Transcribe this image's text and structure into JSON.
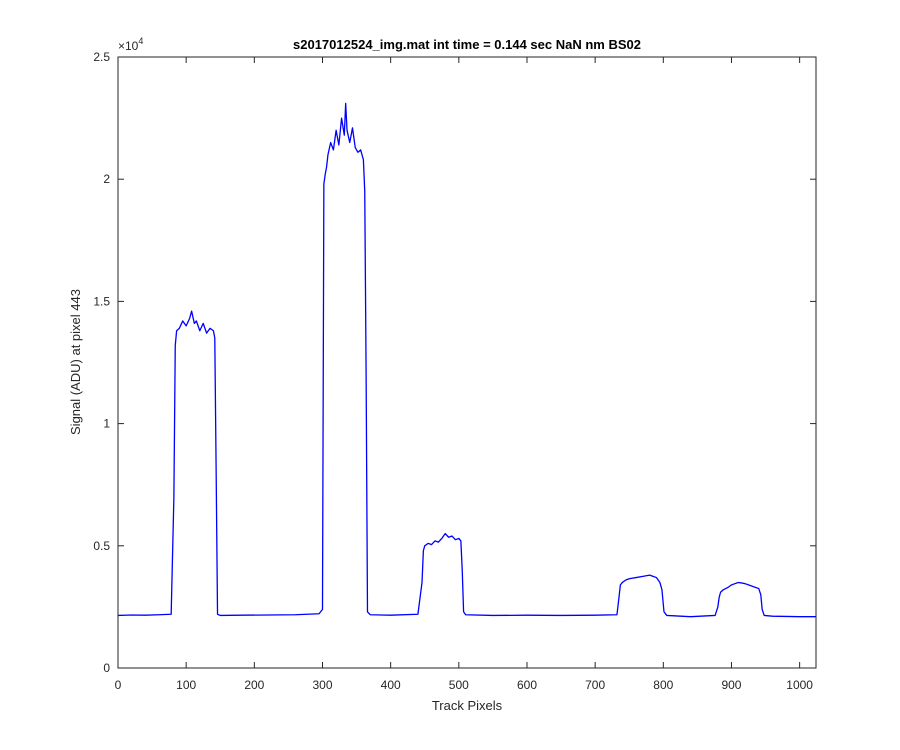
{
  "chart_data": {
    "type": "line",
    "title": "s2017012524_img.mat int time = 0.144 sec  NaN nm BS02",
    "xlabel": "Track Pixels",
    "ylabel": "Signal (ADU) at pixel 443",
    "xlim": [
      0,
      1024
    ],
    "ylim": [
      0,
      25000
    ],
    "xticks": [
      0,
      100,
      200,
      300,
      400,
      500,
      600,
      700,
      800,
      900,
      1000
    ],
    "yticks": [
      0,
      5000,
      10000,
      15000,
      20000,
      25000
    ],
    "ytick_labels": [
      "0",
      "0.5",
      "1",
      "1.5",
      "2",
      "2.5"
    ],
    "xtick_labels": [
      "0",
      "100",
      "200",
      "300",
      "400",
      "500",
      "600",
      "700",
      "800",
      "900",
      "1000"
    ],
    "y_exponent_label": "×10",
    "y_exponent_power": "4",
    "grid": false,
    "line_color": "#0000ff",
    "series": [
      {
        "x": [
          0,
          20,
          40,
          60,
          78,
          82,
          84,
          86,
          90,
          95,
          100,
          105,
          108,
          112,
          115,
          120,
          125,
          130,
          135,
          140,
          142,
          144,
          146,
          150,
          180,
          220,
          260,
          295,
          300,
          302,
          304,
          306,
          308,
          312,
          316,
          320,
          324,
          328,
          332,
          334,
          336,
          340,
          344,
          348,
          352,
          356,
          360,
          362,
          364,
          366,
          370,
          400,
          440,
          446,
          448,
          450,
          455,
          460,
          465,
          470,
          475,
          480,
          485,
          490,
          495,
          500,
          503,
          505,
          507,
          510,
          550,
          600,
          650,
          700,
          732,
          735,
          737,
          740,
          745,
          750,
          760,
          770,
          780,
          785,
          790,
          795,
          798,
          801,
          805,
          840,
          876,
          880,
          882,
          884,
          888,
          895,
          900,
          905,
          910,
          915,
          920,
          925,
          930,
          935,
          940,
          943,
          945,
          948,
          960,
          1000,
          1024
        ],
        "y": [
          2150,
          2170,
          2160,
          2180,
          2200,
          7000,
          13200,
          13800,
          13900,
          14200,
          14000,
          14300,
          14600,
          14100,
          14200,
          13800,
          14100,
          13700,
          13900,
          13800,
          13500,
          8000,
          2200,
          2150,
          2160,
          2170,
          2180,
          2220,
          2400,
          19800,
          20200,
          20500,
          21000,
          21500,
          21200,
          22000,
          21400,
          22500,
          21800,
          23100,
          22000,
          21500,
          22100,
          21300,
          21100,
          21200,
          20800,
          19500,
          12000,
          2300,
          2180,
          2160,
          2200,
          3500,
          4800,
          5000,
          5100,
          5050,
          5200,
          5150,
          5300,
          5500,
          5350,
          5400,
          5250,
          5300,
          5200,
          4000,
          2300,
          2180,
          2150,
          2160,
          2150,
          2160,
          2180,
          2900,
          3400,
          3500,
          3600,
          3650,
          3700,
          3750,
          3800,
          3750,
          3700,
          3500,
          3200,
          2300,
          2150,
          2100,
          2150,
          2500,
          2900,
          3100,
          3200,
          3300,
          3400,
          3450,
          3500,
          3480,
          3450,
          3400,
          3350,
          3300,
          3250,
          3000,
          2400,
          2150,
          2120,
          2100,
          2100
        ]
      }
    ]
  }
}
